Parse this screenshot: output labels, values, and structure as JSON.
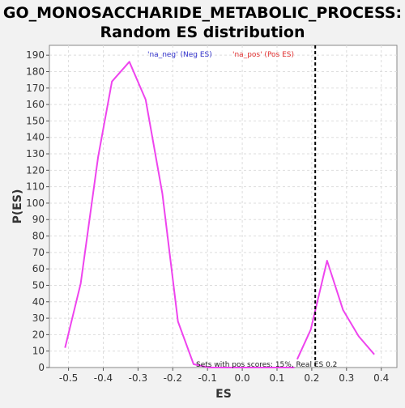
{
  "chart_data": {
    "type": "line",
    "title_lines": [
      "GO_MONOSACCHARIDE_METABOLIC_PROCESS:",
      "Random ES distribution"
    ],
    "xlabel": "ES",
    "ylabel": "P(ES)",
    "xlim": [
      -0.555,
      0.445
    ],
    "ylim": [
      0,
      196
    ],
    "x_ticks": [
      -0.5,
      -0.4,
      -0.3,
      -0.2,
      -0.1,
      0.0,
      0.1,
      0.2,
      0.3,
      0.4
    ],
    "x_tick_labels": [
      "-0.5",
      "-0.4",
      "-0.3",
      "-0.2",
      "-0.1",
      "0.0",
      "0.1",
      "0.2",
      "0.3",
      "0.4"
    ],
    "y_ticks": [
      0,
      10,
      20,
      30,
      40,
      50,
      60,
      70,
      80,
      90,
      100,
      110,
      120,
      130,
      140,
      150,
      160,
      170,
      180,
      190
    ],
    "grid": true,
    "legend": {
      "placement": "top",
      "items": [
        {
          "label": "'na_neg' (Neg ES)",
          "color": "#3333cc"
        },
        {
          "label": "'na_pos' (Pos ES)",
          "color": "#e03030"
        }
      ]
    },
    "series": [
      {
        "color": "#ee44ee",
        "x": [
          -0.51,
          -0.465,
          -0.415,
          -0.375,
          -0.325,
          -0.278,
          -0.23,
          -0.185,
          -0.14,
          -0.095,
          -0.05,
          0.0,
          0.05,
          0.1,
          0.15
        ],
        "y": [
          12,
          51,
          128,
          174,
          186,
          163,
          106,
          28,
          2,
          0,
          0,
          0,
          0,
          0,
          0
        ]
      },
      {
        "color": "#ee44ee",
        "x": [
          0.158,
          0.197,
          0.244,
          0.29,
          0.335,
          0.38
        ],
        "y": [
          5,
          23,
          65,
          35,
          19,
          8
        ]
      }
    ],
    "real_es": {
      "x": 0.21,
      "color": "#000000"
    },
    "annotation": "Sets with pos scores: 15%, Real ES 0.2",
    "colors": {
      "background": "#ffffff",
      "page": "#f2f2f2",
      "grid": "#dddddd",
      "line": "#ee44ee"
    }
  }
}
